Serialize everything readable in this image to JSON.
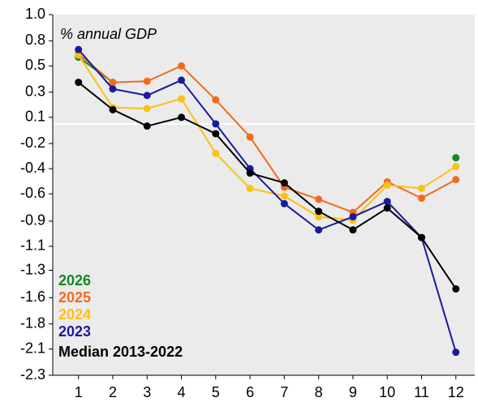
{
  "chart_data": {
    "type": "line",
    "annotation": "% annual GDP",
    "x": [
      1,
      2,
      3,
      4,
      5,
      6,
      7,
      8,
      9,
      10,
      11,
      12
    ],
    "xlim": [
      0.25,
      12.55
    ],
    "xticks": [
      1,
      2,
      3,
      4,
      5,
      6,
      7,
      8,
      9,
      10,
      11,
      12
    ],
    "ylim": [
      -2.3,
      1.0
    ],
    "yticks": [
      {
        "value": 1.0,
        "label": "1.0"
      },
      {
        "value": 0.76,
        "label": "0.8"
      },
      {
        "value": 0.53,
        "label": "0.5"
      },
      {
        "value": 0.29,
        "label": "0.3"
      },
      {
        "value": 0.06,
        "label": "0.1"
      },
      {
        "value": -0.18,
        "label": "-0.2"
      },
      {
        "value": -0.41,
        "label": "-0.4"
      },
      {
        "value": -0.64,
        "label": "-0.6"
      },
      {
        "value": -0.89,
        "label": "-0.9"
      },
      {
        "value": -1.12,
        "label": "-1.1"
      },
      {
        "value": -1.34,
        "label": "-1.3"
      },
      {
        "value": -1.59,
        "label": "-1.6"
      },
      {
        "value": -1.83,
        "label": "-1.8"
      },
      {
        "value": -2.06,
        "label": "-2.1"
      },
      {
        "value": -2.3,
        "label": "-2.3"
      }
    ],
    "zero_line": true,
    "series": [
      {
        "name": "2026",
        "color": "#128a1e",
        "values": [
          0.61,
          0.38,
          null,
          null,
          null,
          null,
          null,
          null,
          null,
          null,
          null,
          -0.31
        ]
      },
      {
        "name": "2025",
        "color": "#f26b1d",
        "values": [
          0.64,
          0.38,
          0.39,
          0.53,
          0.22,
          -0.12,
          -0.58,
          -0.69,
          -0.81,
          -0.53,
          -0.68,
          -0.51
        ]
      },
      {
        "name": "2024",
        "color": "#fbc115",
        "values": [
          0.63,
          0.15,
          0.14,
          0.23,
          -0.27,
          -0.59,
          -0.66,
          -0.85,
          -0.88,
          -0.56,
          -0.59,
          -0.39
        ]
      },
      {
        "name": "2023",
        "color": "#1a1a9c",
        "values": [
          0.68,
          0.32,
          0.26,
          0.4,
          0.0,
          -0.41,
          -0.73,
          -0.97,
          -0.85,
          -0.71,
          -1.04,
          -2.09
        ]
      },
      {
        "name": "Median 2013-2022",
        "color": "#000000",
        "values": [
          0.38,
          0.13,
          -0.02,
          0.06,
          -0.09,
          -0.45,
          -0.54,
          -0.8,
          -0.97,
          -0.77,
          -1.04,
          -1.51
        ]
      }
    ]
  }
}
